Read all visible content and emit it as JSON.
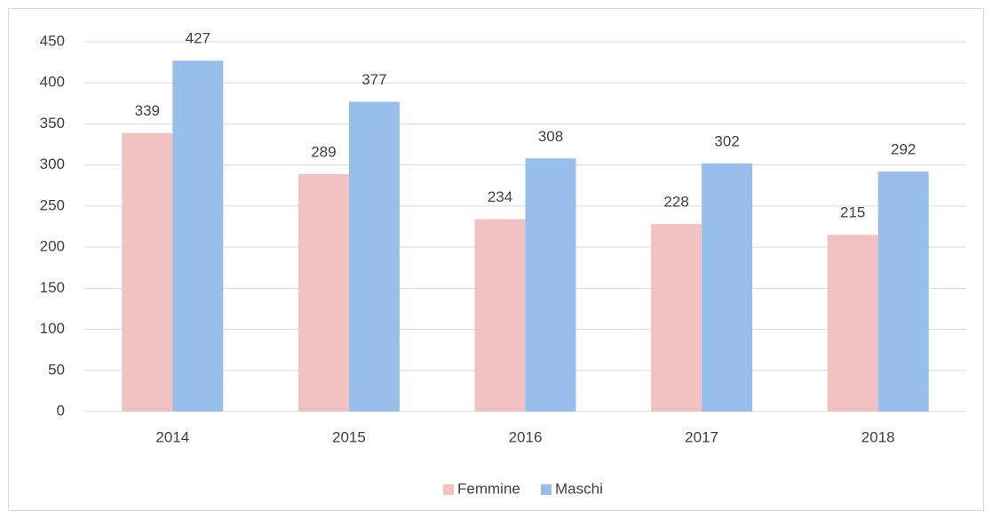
{
  "chart_data": {
    "type": "bar",
    "categories": [
      "2014",
      "2015",
      "2016",
      "2017",
      "2018"
    ],
    "series": [
      {
        "name": "Femmine",
        "color": "#f2c1c1",
        "values": [
          339,
          289,
          234,
          228,
          215
        ]
      },
      {
        "name": "Maschi",
        "color": "#98bfeb",
        "values": [
          427,
          377,
          308,
          302,
          292
        ]
      }
    ],
    "ylim": [
      0,
      450
    ],
    "yticks": [
      0,
      50,
      100,
      150,
      200,
      250,
      300,
      350,
      400,
      450
    ],
    "grid": true,
    "legend": "bottom"
  }
}
